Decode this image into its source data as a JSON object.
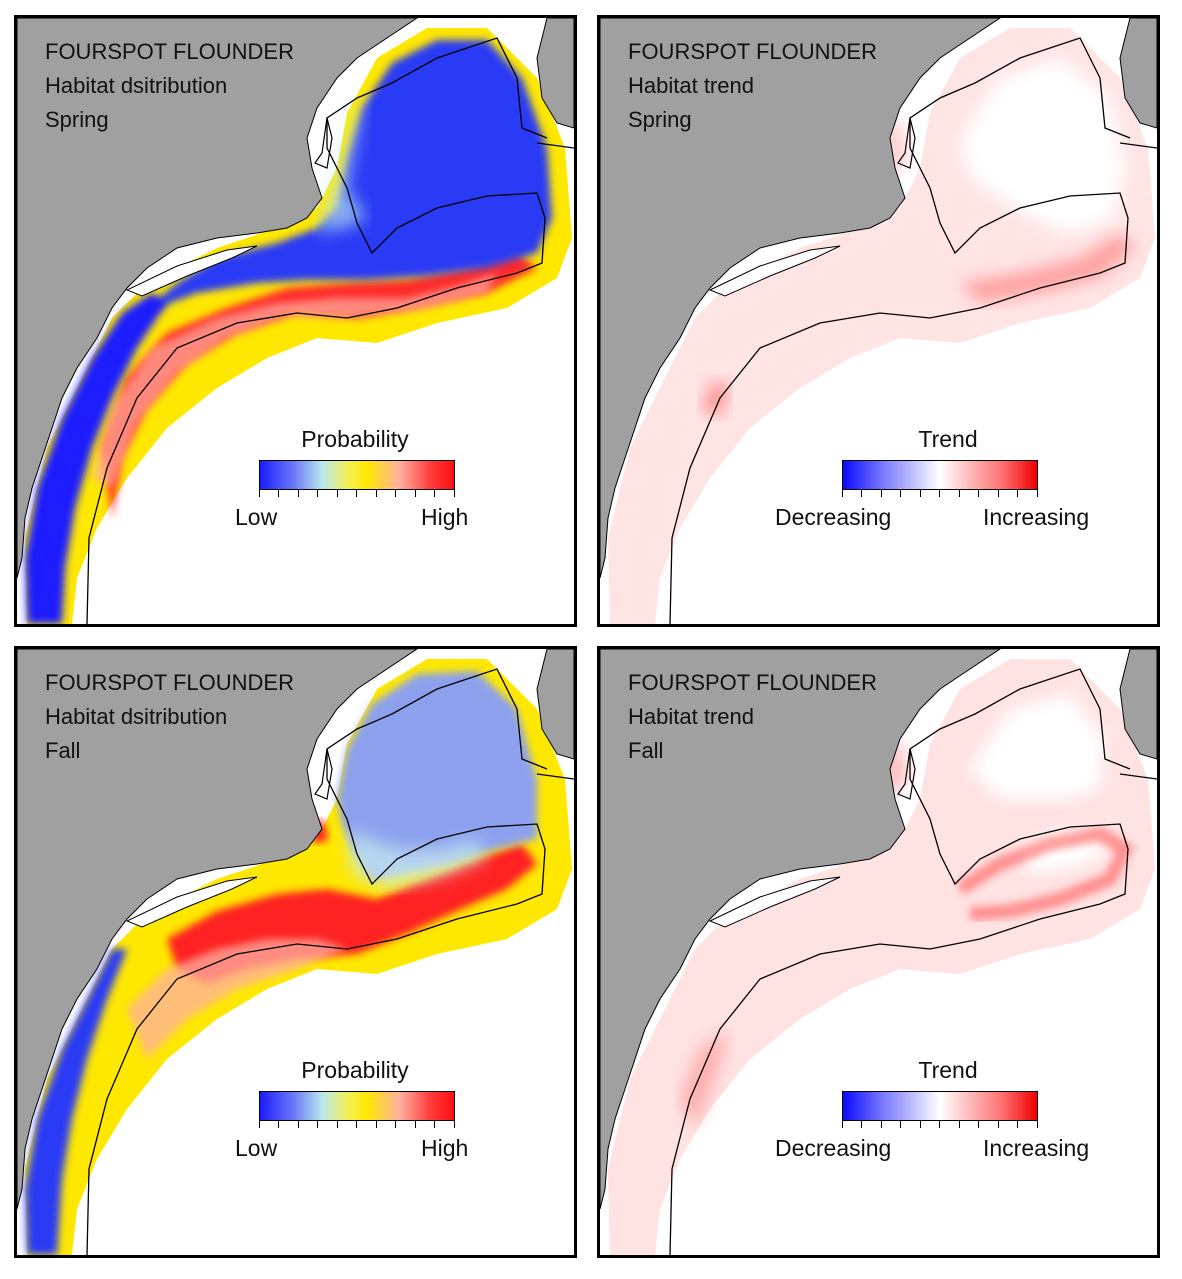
{
  "panels": [
    {
      "id": "spring-distribution",
      "lines": [
        "FOURSPOT FLOUNDER",
        "Habitat dsitribution",
        "Spring"
      ],
      "legend": {
        "title": "Probability",
        "low": "Low",
        "high": "High",
        "scale": "probability"
      }
    },
    {
      "id": "spring-trend",
      "lines": [
        "FOURSPOT FLOUNDER",
        "Habitat trend",
        "Spring"
      ],
      "legend": {
        "title": "Trend",
        "low": "Decreasing",
        "high": "Increasing",
        "scale": "trend"
      }
    },
    {
      "id": "fall-distribution",
      "lines": [
        "FOURSPOT FLOUNDER",
        "Habitat dsitribution",
        "Fall"
      ],
      "legend": {
        "title": "Probability",
        "low": "Low",
        "high": "High",
        "scale": "probability"
      }
    },
    {
      "id": "fall-trend",
      "lines": [
        "FOURSPOT FLOUNDER",
        "Habitat trend",
        "Fall"
      ],
      "legend": {
        "title": "Trend",
        "low": "Decreasing",
        "high": "Increasing",
        "scale": "trend"
      }
    }
  ],
  "colors": {
    "land": "#a0a0a0",
    "ocean": "#ffffff",
    "prob_low": "#1b1bff",
    "prob_mid": "#ffe800",
    "prob_high": "#ff1010",
    "trend_decreasing": "#0a0aff",
    "trend_increasing": "#ee0000"
  }
}
